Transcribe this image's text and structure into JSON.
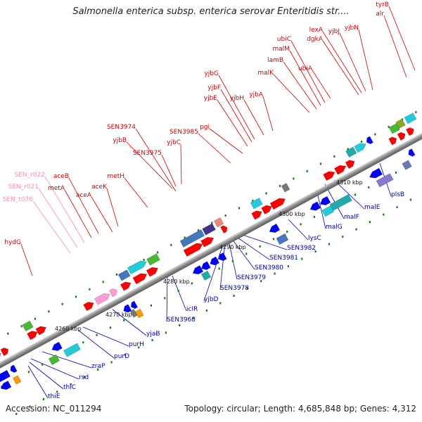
{
  "header": {
    "title": "Salmonella enterica subsp. enterica serovar Enteritidis str...."
  },
  "footer": {
    "accession": "Accession: NC_011294",
    "stats": "Topology: circular; Length: 4,685,848 bp; Genes: 4,312"
  },
  "colors": {
    "forward_label": "#cc0000",
    "reverse_label": "#0000aa",
    "rna_label": "#ff88bb",
    "forward_feature": "#ff0000",
    "reverse_feature": "#0000ff",
    "backbone": "#999999"
  },
  "kbp_markers": [
    "4260 kbp",
    "4270 kbp",
    "4280 kbp",
    "4290 kbp",
    "4300 kbp",
    "4310 kbp"
  ],
  "forward_genes": [
    "hydG",
    "SEN_t076",
    "SEN_r021",
    "SEN_r022",
    "metA",
    "aceB",
    "aceA",
    "aceK",
    "metH",
    "SEN3974",
    "yjbB",
    "SEN3975",
    "yjbC",
    "SEN3985",
    "pgi",
    "yjbE",
    "yjbF",
    "yjbG",
    "yjbH",
    "yjbA",
    "malK",
    "lamB",
    "malM",
    "ubiC",
    "dgkA",
    "lexA",
    "ubiA",
    "yjbJ",
    "yjbN",
    "alr",
    "tyrB"
  ],
  "reverse_genes": [
    "thiE",
    "thiC",
    "rsd",
    "zraP",
    "purD",
    "purH",
    "yjaB",
    "SEN3968",
    "iclR",
    "yjbD",
    "SEN3978",
    "SEN3979",
    "SEN3980",
    "SEN3981",
    "SEN3982",
    "lysC",
    "malG",
    "malF",
    "malE",
    "plsB"
  ]
}
